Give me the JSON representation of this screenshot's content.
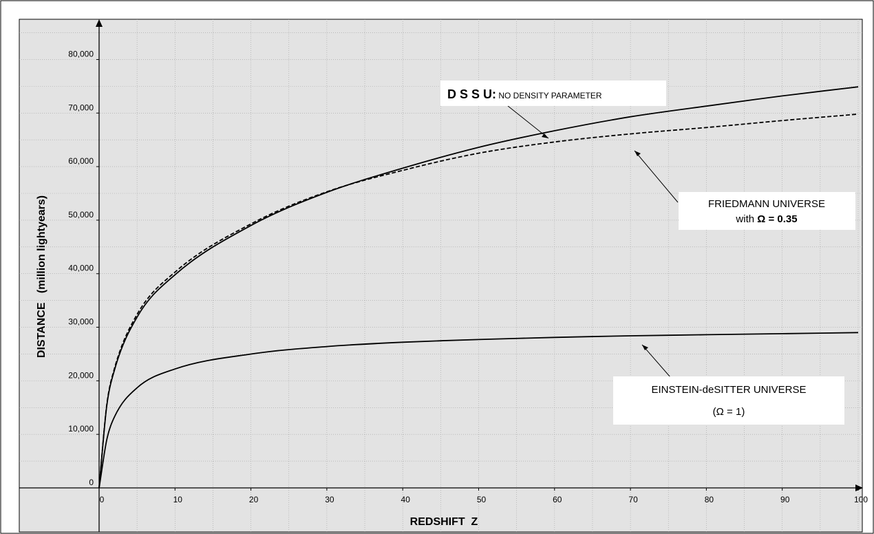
{
  "chart_data": {
    "type": "line",
    "title": "",
    "xlabel": "REDSHIFT  Z",
    "ylabel": "DISTANCE   (million lightyears)",
    "xlim": [
      0,
      100
    ],
    "ylim": [
      0,
      87000
    ],
    "grid": true,
    "x_ticks": [
      0,
      10,
      20,
      30,
      40,
      50,
      60,
      70,
      80,
      90,
      100
    ],
    "x_tick_labels": [
      "0",
      "10",
      "20",
      "30",
      "40",
      "50",
      "60",
      "70",
      "80",
      "90",
      "100"
    ],
    "y_ticks": [
      0,
      10000,
      20000,
      30000,
      40000,
      50000,
      60000,
      70000,
      80000
    ],
    "y_tick_labels": [
      "0",
      "10,000",
      "20,000",
      "30,000",
      "40,000",
      "50,000",
      "60,000",
      "70,000",
      "80,000"
    ],
    "x": [
      0,
      1,
      2,
      5,
      10,
      20,
      30,
      40,
      50,
      60,
      70,
      80,
      90,
      100
    ],
    "series": [
      {
        "name": "D S S U",
        "style": "solid",
        "color": "#000000",
        "values": [
          0,
          15200,
          21900,
          31900,
          39800,
          49000,
          55200,
          59700,
          63600,
          66700,
          69300,
          71300,
          73200,
          74900
        ]
      },
      {
        "name": "FRIEDMANN UNIVERSE",
        "style": "dashed",
        "color": "#000000",
        "values": [
          0,
          15400,
          22200,
          32400,
          40300,
          49300,
          55300,
          59300,
          62500,
          64600,
          66100,
          67300,
          68600,
          69800
        ]
      },
      {
        "name": "EINSTEIN-deSITTER UNIVERSE",
        "style": "solid",
        "color": "#000000",
        "values": [
          0,
          8900,
          13200,
          18700,
          22200,
          25000,
          26400,
          27200,
          27700,
          28100,
          28400,
          28600,
          28800,
          29000
        ]
      }
    ],
    "annotations": [
      {
        "bold": "D S S U:",
        "text": " NO DENSITY PARAMETER"
      },
      {
        "line1": "FRIEDMANN UNIVERSE",
        "line2_prefix": "with ",
        "line2_bold": "Ω = 0.35"
      },
      {
        "line1": "EINSTEIN-deSITTER UNIVERSE",
        "line2": "(Ω = 1)"
      }
    ]
  }
}
